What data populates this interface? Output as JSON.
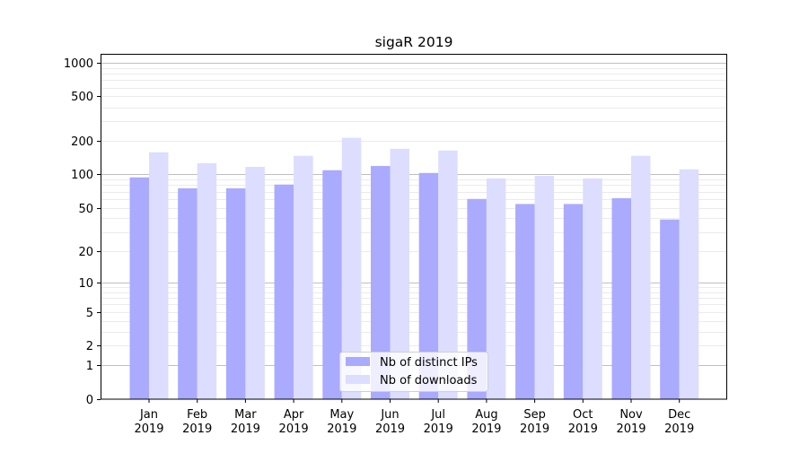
{
  "chart_data": {
    "type": "bar",
    "title": "sigaR 2019",
    "xlabel": "",
    "ylabel": "",
    "yscale": "log10(1+y)",
    "ylim": [
      0,
      1200
    ],
    "yticks": [
      0,
      1,
      2,
      5,
      10,
      20,
      50,
      100,
      200,
      500,
      1000
    ],
    "grid": true,
    "legend_position": "bottom-center",
    "categories": [
      [
        "Jan",
        "2019"
      ],
      [
        "Feb",
        "2019"
      ],
      [
        "Mar",
        "2019"
      ],
      [
        "Apr",
        "2019"
      ],
      [
        "May",
        "2019"
      ],
      [
        "Jun",
        "2019"
      ],
      [
        "Jul",
        "2019"
      ],
      [
        "Aug",
        "2019"
      ],
      [
        "Sep",
        "2019"
      ],
      [
        "Oct",
        "2019"
      ],
      [
        "Nov",
        "2019"
      ],
      [
        "Dec",
        "2019"
      ]
    ],
    "series": [
      {
        "name": "Nb of distinct IPs",
        "color": "#aaaaff",
        "values": [
          94,
          75,
          75,
          81,
          109,
          119,
          103,
          60,
          54,
          54,
          61,
          39
        ]
      },
      {
        "name": "Nb of downloads",
        "color": "#ddddff",
        "values": [
          158,
          126,
          117,
          147,
          213,
          170,
          164,
          92,
          97,
          92,
          147,
          111
        ]
      }
    ]
  }
}
